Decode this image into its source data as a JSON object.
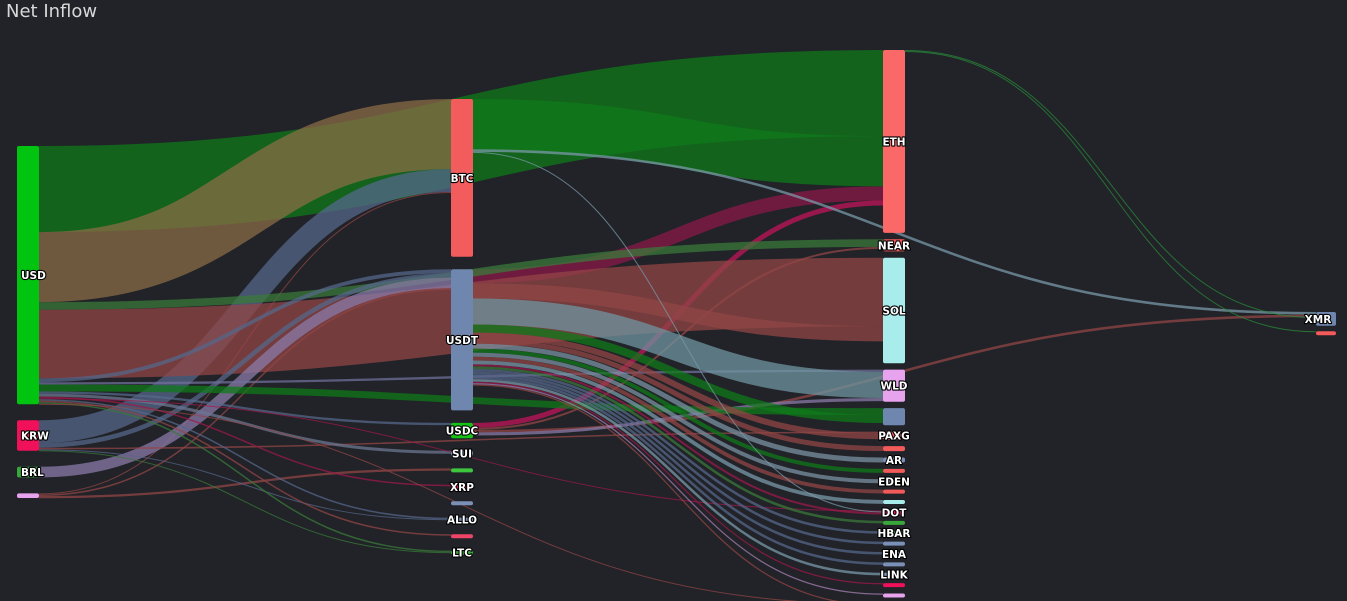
{
  "title": "Net Inflow",
  "colors": {
    "background": "#212328",
    "title": "#d8d8d8",
    "link_opacity": 0.75
  },
  "chart_data": {
    "type": "sankey",
    "title": "Net Inflow",
    "nodes": [
      {
        "id": "usd",
        "label": "USD",
        "column": 0,
        "color": "#00c40f"
      },
      {
        "id": "krw",
        "label": "KRW",
        "column": 0,
        "color": "#f0115a"
      },
      {
        "id": "brl",
        "label": "BRL",
        "column": 0,
        "color": "#38a83a"
      },
      {
        "id": "src4",
        "label": "",
        "column": 0,
        "color": "#e8a3ee"
      },
      {
        "id": "btc",
        "label": "BTC",
        "column": 1,
        "color": "#f25c5c"
      },
      {
        "id": "usdt",
        "label": "USDT",
        "column": 1,
        "color": "#6f87ae"
      },
      {
        "id": "usdc",
        "label": "USDC",
        "column": 1,
        "color": "#17c217"
      },
      {
        "id": "sui",
        "label": "SUI",
        "column": 1,
        "color": "#7a90b6"
      },
      {
        "id": "m_g",
        "label": "",
        "column": 1,
        "color": "#3ec63e"
      },
      {
        "id": "xrp",
        "label": "XRP",
        "column": 1,
        "color": "#f0115a"
      },
      {
        "id": "m_b",
        "label": "",
        "column": 1,
        "color": "#7a90b6"
      },
      {
        "id": "allo",
        "label": "ALLO",
        "column": 1,
        "color": "#7a90b6"
      },
      {
        "id": "m_r",
        "label": "",
        "column": 1,
        "color": "#ee4466"
      },
      {
        "id": "ltc",
        "label": "LTC",
        "column": 1,
        "color": "#38a83a"
      },
      {
        "id": "eth",
        "label": "ETH",
        "column": 2,
        "color": "#fb6868"
      },
      {
        "id": "near",
        "label": "NEAR",
        "column": 2,
        "color": "#f35a5a"
      },
      {
        "id": "sol",
        "label": "SOL",
        "column": 2,
        "color": "#a9ecec"
      },
      {
        "id": "wld",
        "label": "WLD",
        "column": 2,
        "color": "#e8a3ee"
      },
      {
        "id": "t_b",
        "label": "",
        "column": 2,
        "color": "#6f87ae"
      },
      {
        "id": "paxg",
        "label": "PAXG",
        "column": 2,
        "color": "#f35a5a"
      },
      {
        "id": "t_r1",
        "label": "",
        "column": 2,
        "color": "#f35a5a"
      },
      {
        "id": "ar",
        "label": "AR",
        "column": 2,
        "color": "#7a90b6"
      },
      {
        "id": "t_r2",
        "label": "",
        "column": 2,
        "color": "#f35a5a"
      },
      {
        "id": "eden",
        "label": "EDEN",
        "column": 2,
        "color": "#7a90b6"
      },
      {
        "id": "t_r3",
        "label": "",
        "column": 2,
        "color": "#f35a5a"
      },
      {
        "id": "t_c",
        "label": "",
        "column": 2,
        "color": "#a9ecec"
      },
      {
        "id": "dot",
        "label": "DOT",
        "column": 2,
        "color": "#f0115a"
      },
      {
        "id": "t_g",
        "label": "",
        "column": 2,
        "color": "#38a83a"
      },
      {
        "id": "hbar",
        "label": "HBAR",
        "column": 2,
        "color": "#38a83a"
      },
      {
        "id": "t_b2",
        "label": "",
        "column": 2,
        "color": "#7a90b6"
      },
      {
        "id": "ena",
        "label": "ENA",
        "column": 2,
        "color": "#7a90b6"
      },
      {
        "id": "t_b3",
        "label": "",
        "column": 2,
        "color": "#7a90b6"
      },
      {
        "id": "link",
        "label": "LINK",
        "column": 2,
        "color": "#7a90b6"
      },
      {
        "id": "t_m",
        "label": "",
        "column": 2,
        "color": "#f0115a"
      },
      {
        "id": "t_p",
        "label": "",
        "column": 2,
        "color": "#e8a3ee"
      },
      {
        "id": "t_x",
        "label": "",
        "column": 2,
        "color": "#f35a5a"
      },
      {
        "id": "xmr",
        "label": "XMR",
        "column": 3,
        "color": "#6f87ae"
      },
      {
        "id": "x_r",
        "label": "",
        "column": 3,
        "color": "#f35a5a"
      }
    ],
    "links": [
      {
        "source": "usd",
        "target": "eth",
        "value": 113,
        "color": "#0f7a1a"
      },
      {
        "source": "usd",
        "target": "btc",
        "value": 92,
        "color": "#8a6c45"
      },
      {
        "source": "usd",
        "target": "sol",
        "value": 90,
        "color": "#924545"
      },
      {
        "source": "usd",
        "target": "near",
        "value": 10,
        "color": "#3a7a3a"
      },
      {
        "source": "usd",
        "target": "t_b",
        "value": 9,
        "color": "#0f7a1a"
      },
      {
        "source": "usd",
        "target": "usdt",
        "value": 5,
        "color": "#56678a"
      },
      {
        "source": "usd",
        "target": "wld",
        "value": 3,
        "color": "#6f6f9a"
      },
      {
        "source": "usd",
        "target": "sui",
        "value": 4,
        "color": "#6b7790"
      },
      {
        "source": "usd",
        "target": "xrp",
        "value": 2,
        "color": "#9b1a4a"
      },
      {
        "source": "usd",
        "target": "usdc",
        "value": 3,
        "color": "#56678a"
      },
      {
        "source": "usd",
        "target": "allo",
        "value": 2,
        "color": "#56678a"
      },
      {
        "source": "usd",
        "target": "ltc",
        "value": 2,
        "color": "#3a7a3a"
      },
      {
        "source": "usd",
        "target": "m_r",
        "value": 2,
        "color": "#924545"
      },
      {
        "source": "usd",
        "target": "t_x",
        "value": 1,
        "color": "#924545"
      },
      {
        "source": "usd",
        "target": "dot",
        "value": 1,
        "color": "#9b1a4a"
      },
      {
        "source": "krw",
        "target": "btc",
        "value": 30,
        "color": "#56678a"
      },
      {
        "source": "krw",
        "target": "usdt",
        "value": 6,
        "color": "#56678a"
      },
      {
        "source": "krw",
        "target": "paxg",
        "value": 2,
        "color": "#924545"
      },
      {
        "source": "krw",
        "target": "ltc",
        "value": 1,
        "color": "#3a7a3a"
      },
      {
        "source": "krw",
        "target": "allo",
        "value": 1,
        "color": "#56678a"
      },
      {
        "source": "brl",
        "target": "usdt",
        "value": 14,
        "color": "#8a7aa8"
      },
      {
        "source": "src4",
        "target": "usdt",
        "value": 2,
        "color": "#924545"
      },
      {
        "source": "src4",
        "target": "btc",
        "value": 1,
        "color": "#924545"
      },
      {
        "source": "src4",
        "target": "m_g",
        "value": 3,
        "color": "#924545"
      },
      {
        "source": "btc",
        "target": "eth",
        "value": 50,
        "color": "#0f7a1a"
      },
      {
        "source": "btc",
        "target": "xmr",
        "value": 2,
        "color": "#7a9aa8"
      },
      {
        "source": "btc",
        "target": "dot",
        "value": 1,
        "color": "#7a9aa8"
      },
      {
        "source": "usdt",
        "target": "sol",
        "value": 15,
        "color": "#924545"
      },
      {
        "source": "usdt",
        "target": "wld",
        "value": 26,
        "color": "#6f94a0"
      },
      {
        "source": "usdt",
        "target": "eth",
        "value": 14,
        "color": "#8a1a48"
      },
      {
        "source": "usdt",
        "target": "t_b",
        "value": 8,
        "color": "#0f7a1a"
      },
      {
        "source": "usdt",
        "target": "paxg",
        "value": 6,
        "color": "#924545"
      },
      {
        "source": "usdt",
        "target": "t_r1",
        "value": 5,
        "color": "#924545"
      },
      {
        "source": "usdt",
        "target": "ar",
        "value": 5,
        "color": "#7a90a0"
      },
      {
        "source": "usdt",
        "target": "t_r2",
        "value": 4,
        "color": "#0f7a1a"
      },
      {
        "source": "usdt",
        "target": "eden",
        "value": 4,
        "color": "#7a90a0"
      },
      {
        "source": "usdt",
        "target": "t_r3",
        "value": 3,
        "color": "#924545"
      },
      {
        "source": "usdt",
        "target": "t_c",
        "value": 3,
        "color": "#7a9aa8"
      },
      {
        "source": "usdt",
        "target": "dot",
        "value": 2,
        "color": "#9b1a4a"
      },
      {
        "source": "usdt",
        "target": "t_g",
        "value": 2,
        "color": "#3a7a3a"
      },
      {
        "source": "usdt",
        "target": "hbar",
        "value": 2,
        "color": "#56678a"
      },
      {
        "source": "usdt",
        "target": "t_b2",
        "value": 2,
        "color": "#56678a"
      },
      {
        "source": "usdt",
        "target": "ena",
        "value": 2,
        "color": "#56678a"
      },
      {
        "source": "usdt",
        "target": "t_b3",
        "value": 2,
        "color": "#56678a"
      },
      {
        "source": "usdt",
        "target": "link",
        "value": 2,
        "color": "#7a9aa8"
      },
      {
        "source": "usdt",
        "target": "t_m",
        "value": 1,
        "color": "#9b1a4a"
      },
      {
        "source": "usdt",
        "target": "t_p",
        "value": 1,
        "color": "#a67fb0"
      },
      {
        "source": "usdt",
        "target": "t_x",
        "value": 1,
        "color": "#924545"
      },
      {
        "source": "usdc",
        "target": "eth",
        "value": 5,
        "color": "#c0145a"
      },
      {
        "source": "usdc",
        "target": "wld",
        "value": 3,
        "color": "#8a7aa8"
      },
      {
        "source": "usdc",
        "target": "xmr",
        "value": 2,
        "color": "#924545"
      },
      {
        "source": "usdc",
        "target": "near",
        "value": 2,
        "color": "#924545"
      },
      {
        "source": "eth",
        "target": "xmr",
        "value": 1,
        "color": "#2a8a3a"
      },
      {
        "source": "eth",
        "target": "x_r",
        "value": 1,
        "color": "#2a8a3a"
      }
    ]
  }
}
